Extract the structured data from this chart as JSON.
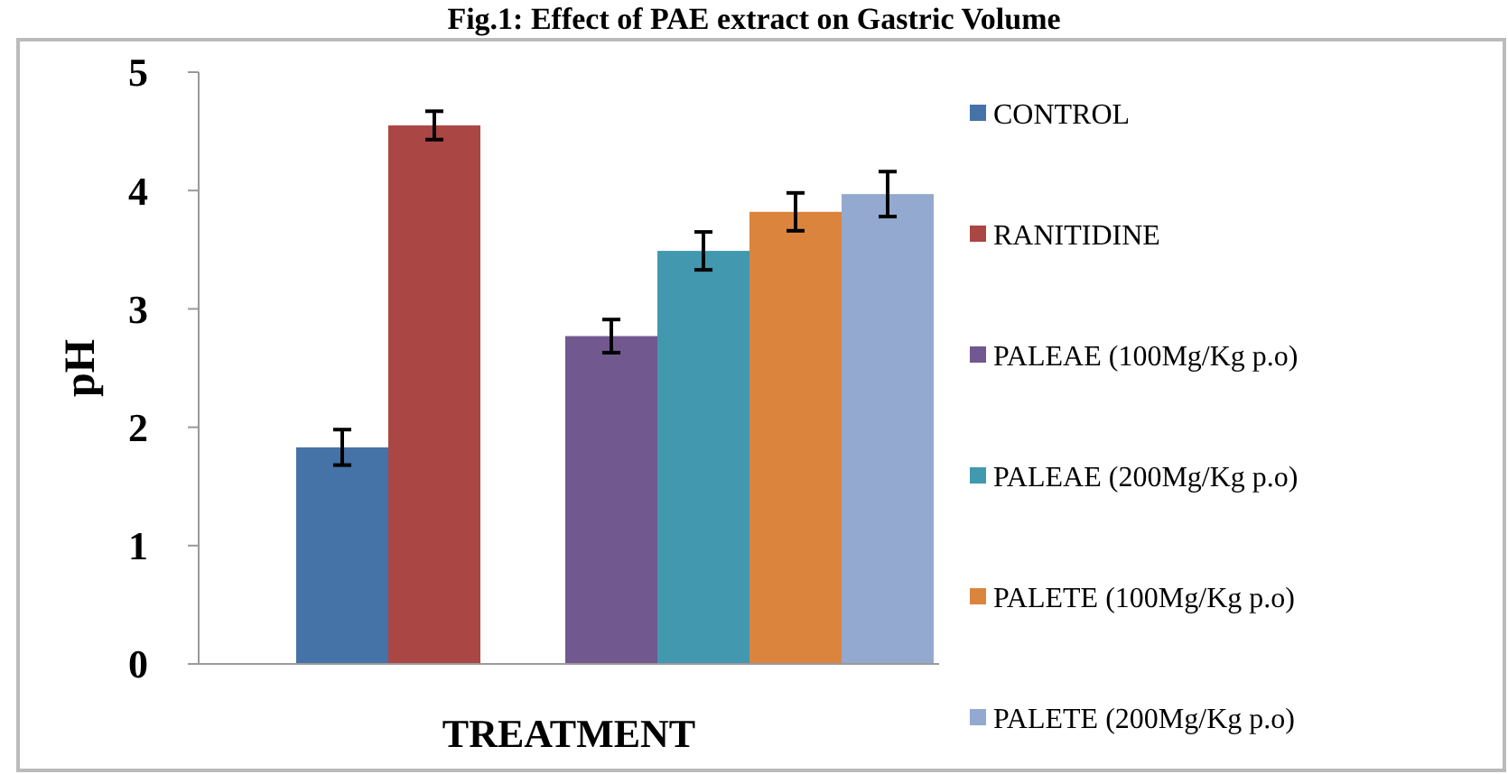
{
  "chart_data": {
    "type": "bar",
    "title": "Fig.1: Effect of PAE extract on Gastric Volume",
    "xlabel": "TREATMENT",
    "ylabel": "pH",
    "categories": [
      null,
      null
    ],
    "ylim": [
      0,
      5
    ],
    "yticks": [
      0,
      1,
      2,
      3,
      4,
      5
    ],
    "legend": "right",
    "series": [
      {
        "name": "CONTROL",
        "color": "#4572a7",
        "values": [
          1.83,
          null
        ],
        "errors": [
          0.15,
          null
        ]
      },
      {
        "name": "RANITIDINE",
        "color": "#aa4643",
        "values": [
          4.55,
          null
        ],
        "errors": [
          0.12,
          null
        ]
      },
      {
        "name": "PALEAE (100Mg/Kg p.o)",
        "color": "#71588f",
        "values": [
          null,
          2.77
        ],
        "errors": [
          null,
          0.14
        ]
      },
      {
        "name": "PALEAE (200Mg/Kg p.o)",
        "color": "#4198af",
        "values": [
          null,
          3.49
        ],
        "errors": [
          null,
          0.16
        ]
      },
      {
        "name": "PALETE (100Mg/Kg p.o)",
        "color": "#db843d",
        "values": [
          null,
          3.82
        ],
        "errors": [
          null,
          0.16
        ]
      },
      {
        "name": "PALETE (200Mg/Kg p.o)",
        "color": "#93a9cf",
        "values": [
          null,
          3.97
        ],
        "errors": [
          null,
          0.19
        ]
      }
    ]
  }
}
